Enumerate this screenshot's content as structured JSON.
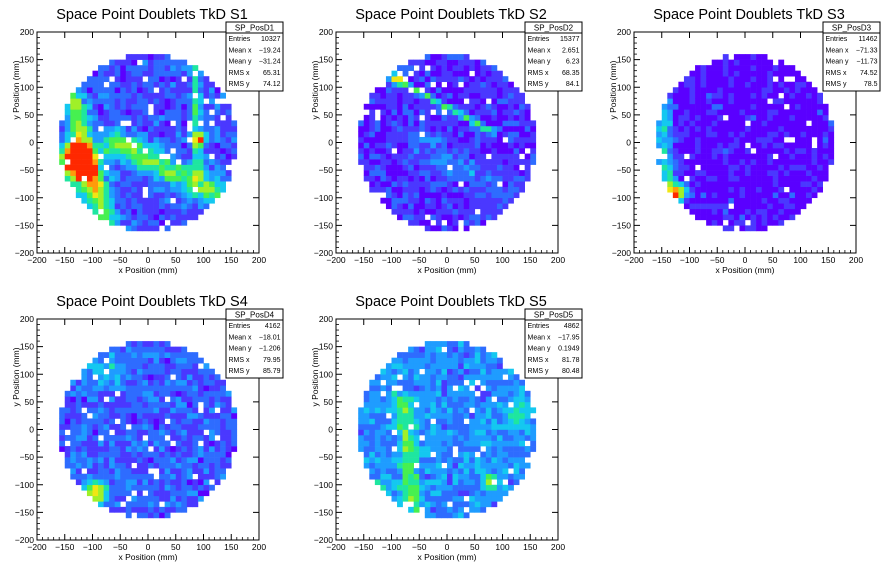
{
  "chart_data": [
    {
      "type": "heatmap",
      "title": "Space Point Doublets TkD S1",
      "xlabel": "x Position (mm)",
      "ylabel": "y Position (mm)",
      "xlim": [
        -200,
        200
      ],
      "ylim": [
        -200,
        200
      ],
      "xticks": [
        -200,
        -150,
        -100,
        -50,
        0,
        50,
        100,
        150,
        200
      ],
      "yticks": [
        -200,
        -150,
        -100,
        -50,
        0,
        50,
        100,
        150,
        200
      ],
      "bin_size": 10,
      "radius": 160,
      "seed": 11,
      "background_level": 0.18,
      "features": [
        {
          "kind": "spot",
          "x": -130,
          "y": -25,
          "sigma": 18,
          "level": 0.9
        },
        {
          "kind": "spot",
          "x": -120,
          "y": -55,
          "sigma": 25,
          "level": 0.55
        },
        {
          "kind": "band",
          "x1": -140,
          "y1": 90,
          "x2": -80,
          "y2": -140,
          "width": 28,
          "level": 0.45
        },
        {
          "kind": "band",
          "x1": -60,
          "y1": 0,
          "x2": 120,
          "y2": -90,
          "width": 35,
          "level": 0.42
        },
        {
          "kind": "band",
          "x1": 85,
          "y1": 150,
          "x2": 90,
          "y2": -60,
          "width": 12,
          "level": 0.32
        },
        {
          "kind": "spot",
          "x": 95,
          "y": 5,
          "sigma": 10,
          "level": 0.5
        }
      ],
      "stats": {
        "name": "SP_PosD1",
        "rows": [
          [
            "Entries",
            "10327"
          ],
          [
            "Mean x",
            "−19.24"
          ],
          [
            "Mean y",
            "−31.24"
          ],
          [
            "RMS x",
            "65.31"
          ],
          [
            "RMS y",
            "74.12"
          ]
        ]
      }
    },
    {
      "type": "heatmap",
      "title": "Space Point Doublets TkD S2",
      "xlabel": "x Position (mm)",
      "ylabel": "y Position (mm)",
      "xlim": [
        -200,
        200
      ],
      "ylim": [
        -200,
        200
      ],
      "xticks": [
        -200,
        -150,
        -100,
        -50,
        0,
        50,
        100,
        150,
        200
      ],
      "yticks": [
        -200,
        -150,
        -100,
        -50,
        0,
        50,
        100,
        150,
        200
      ],
      "bin_size": 10,
      "radius": 160,
      "seed": 23,
      "background_level": 0.12,
      "features": [
        {
          "kind": "band",
          "x1": -100,
          "y1": 120,
          "x2": 80,
          "y2": 20,
          "width": 8,
          "level": 0.42
        },
        {
          "kind": "spot",
          "x": -90,
          "y": 115,
          "sigma": 10,
          "level": 0.4
        },
        {
          "kind": "band",
          "x1": -60,
          "y1": 0,
          "x2": 120,
          "y2": -100,
          "width": 40,
          "level": 0.12
        }
      ],
      "stats": {
        "name": "SP_PosD2",
        "rows": [
          [
            "Entries",
            "15377"
          ],
          [
            "Mean x",
            "2.651"
          ],
          [
            "Mean y",
            "6.23"
          ],
          [
            "RMS x",
            "68.35"
          ],
          [
            "RMS y",
            "84.1"
          ]
        ]
      }
    },
    {
      "type": "heatmap",
      "title": "Space Point Doublets TkD S3",
      "xlabel": "x Position (mm)",
      "ylabel": "y Position (mm)",
      "xlim": [
        -200,
        200
      ],
      "ylim": [
        -200,
        200
      ],
      "xticks": [
        -200,
        -150,
        -100,
        -50,
        0,
        50,
        100,
        150,
        200
      ],
      "yticks": [
        -200,
        -150,
        -100,
        -50,
        0,
        50,
        100,
        150,
        200
      ],
      "bin_size": 10,
      "radius": 160,
      "seed": 37,
      "background_level": 0.06,
      "features": [
        {
          "kind": "band",
          "x1": -150,
          "y1": 80,
          "x2": -140,
          "y2": -100,
          "width": 25,
          "level": 0.35
        },
        {
          "kind": "spot",
          "x": -125,
          "y": -90,
          "sigma": 14,
          "level": 0.65
        }
      ],
      "stats": {
        "name": "SP_PosD3",
        "rows": [
          [
            "Entries",
            "11462"
          ],
          [
            "Mean x",
            "−71.33"
          ],
          [
            "Mean y",
            "−11.73"
          ],
          [
            "RMS x",
            "74.52"
          ],
          [
            "RMS y",
            "78.5"
          ]
        ]
      }
    },
    {
      "type": "heatmap",
      "title": "Space Point Doublets TkD S4",
      "xlabel": "x Position (mm)",
      "ylabel": "y Position (mm)",
      "xlim": [
        -200,
        200
      ],
      "ylim": [
        -200,
        200
      ],
      "xticks": [
        -200,
        -150,
        -100,
        -50,
        0,
        50,
        100,
        150,
        200
      ],
      "yticks": [
        -200,
        -150,
        -100,
        -50,
        0,
        50,
        100,
        150,
        200
      ],
      "bin_size": 10,
      "radius": 160,
      "seed": 53,
      "background_level": 0.2,
      "features": [
        {
          "kind": "spot",
          "x": -95,
          "y": -115,
          "sigma": 15,
          "level": 0.6
        },
        {
          "kind": "spot",
          "x": -80,
          "y": 110,
          "sigma": 20,
          "level": 0.25
        }
      ],
      "stats": {
        "name": "SP_PosD4",
        "rows": [
          [
            "Entries",
            "4162"
          ],
          [
            "Mean x",
            "−18.01"
          ],
          [
            "Mean y",
            "−1.206"
          ],
          [
            "RMS x",
            "79.95"
          ],
          [
            "RMS y",
            "85.79"
          ]
        ]
      }
    },
    {
      "type": "heatmap",
      "title": "Space Point Doublets TkD S5",
      "xlabel": "x Position (mm)",
      "ylabel": "y Position (mm)",
      "xlim": [
        -200,
        200
      ],
      "ylim": [
        -200,
        200
      ],
      "xticks": [
        -200,
        -150,
        -100,
        -50,
        0,
        50,
        100,
        150,
        200
      ],
      "yticks": [
        -200,
        -150,
        -100,
        -50,
        0,
        50,
        100,
        150,
        200
      ],
      "bin_size": 10,
      "radius": 160,
      "seed": 71,
      "background_level": 0.28,
      "features": [
        {
          "kind": "band",
          "x1": -80,
          "y1": 50,
          "x2": -60,
          "y2": -140,
          "width": 25,
          "level": 0.3
        },
        {
          "kind": "spot",
          "x": -130,
          "y": -110,
          "sigma": 14,
          "level": 0.5
        },
        {
          "kind": "spot",
          "x": 80,
          "y": -95,
          "sigma": 10,
          "level": 0.45
        },
        {
          "kind": "spot",
          "x": 130,
          "y": 30,
          "sigma": 20,
          "level": 0.2
        }
      ],
      "stats": {
        "name": "SP_PosD5",
        "rows": [
          [
            "Entries",
            "4862"
          ],
          [
            "Mean x",
            "−17.95"
          ],
          [
            "Mean y",
            "0.1949"
          ],
          [
            "RMS x",
            "81.78"
          ],
          [
            "RMS y",
            "80.48"
          ]
        ]
      }
    }
  ],
  "colors": {
    "palette": [
      "#5a00ff",
      "#4a38ff",
      "#2e6cff",
      "#1f9cff",
      "#14c8f0",
      "#1ee6a0",
      "#46f050",
      "#a0f028",
      "#f0e614",
      "#ff9b0a",
      "#ff2800"
    ],
    "frame": "#000000",
    "stats_bg": "#ffffff"
  }
}
